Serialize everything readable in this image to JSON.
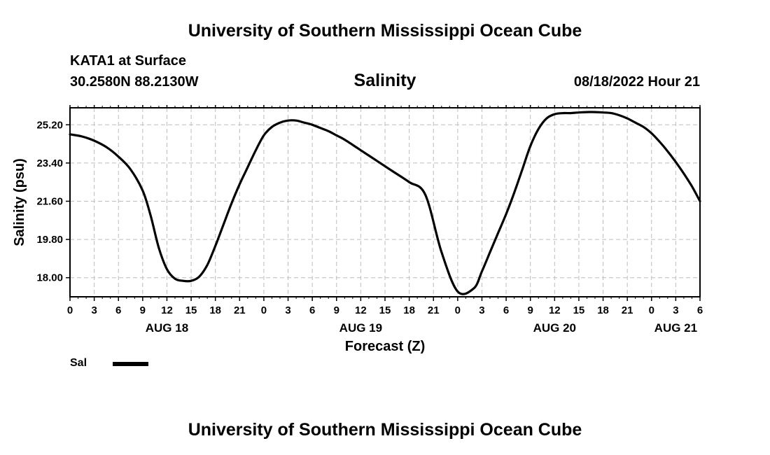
{
  "page": {
    "title_top": "University of Southern Mississippi Ocean Cube",
    "title_bottom": "University of Southern Mississippi Ocean Cube",
    "station": "KATA1 at Surface",
    "coords": "30.2580N  88.2130W",
    "variable": "Salinity",
    "datetime": "08/18/2022 Hour 21"
  },
  "chart_data": {
    "type": "line",
    "title": "Salinity",
    "xlabel": "Forecast (Z)",
    "ylabel": "Salinity (psu)",
    "x_unit": "hours since AUG 18 00Z",
    "xlim": [
      0,
      78
    ],
    "ylim": [
      17.1,
      26.0
    ],
    "grid": true,
    "x_tick_labels": [
      "0",
      "3",
      "6",
      "9",
      "12",
      "15",
      "18",
      "21",
      "0",
      "3",
      "6",
      "9",
      "12",
      "15",
      "18",
      "21",
      "0",
      "3",
      "6",
      "9",
      "12",
      "15",
      "18",
      "21",
      "0",
      "3",
      "6"
    ],
    "x_tick_step_hours": 3,
    "date_labels": [
      {
        "label": "AUG 18",
        "hour": 12
      },
      {
        "label": "AUG 19",
        "hour": 36
      },
      {
        "label": "AUG 20",
        "hour": 60
      },
      {
        "label": "AUG 21",
        "hour": 75
      }
    ],
    "y_ticks": [
      18.0,
      19.8,
      21.6,
      23.4,
      25.2
    ],
    "y_tick_labels": [
      "18.00",
      "19.80",
      "21.60",
      "23.40",
      "25.20"
    ],
    "legend": {
      "label": "Sal",
      "placement": "bottom-left"
    },
    "series": [
      {
        "name": "Sal",
        "x": [
          0,
          1.5,
          3,
          4.5,
          6,
          7.5,
          9,
          10,
          11,
          12,
          13,
          14,
          15,
          16,
          17,
          18,
          19,
          20,
          21,
          22,
          23,
          24,
          25,
          26,
          27,
          28,
          29,
          30,
          31,
          32,
          33,
          34,
          36,
          38,
          40,
          42,
          44,
          46,
          48,
          50,
          51,
          52,
          53,
          54,
          55,
          56,
          57,
          58,
          59,
          60,
          61,
          62,
          63,
          64,
          65,
          66,
          67,
          68,
          69,
          70,
          71,
          72,
          73,
          74,
          75,
          76,
          77,
          78
        ],
        "y": [
          24.75,
          24.65,
          24.45,
          24.15,
          23.7,
          23.1,
          22.1,
          20.9,
          19.4,
          18.4,
          17.95,
          17.85,
          17.85,
          18.05,
          18.6,
          19.5,
          20.5,
          21.5,
          22.4,
          23.2,
          24.0,
          24.7,
          25.1,
          25.3,
          25.4,
          25.4,
          25.3,
          25.2,
          25.05,
          24.9,
          24.7,
          24.5,
          24.0,
          23.5,
          23.0,
          22.5,
          21.9,
          19.2,
          17.35,
          17.5,
          18.3,
          19.2,
          20.1,
          21.0,
          22.0,
          23.1,
          24.2,
          25.0,
          25.5,
          25.7,
          25.75,
          25.75,
          25.78,
          25.8,
          25.8,
          25.78,
          25.75,
          25.65,
          25.5,
          25.3,
          25.1,
          24.8,
          24.4,
          23.95,
          23.45,
          22.9,
          22.3,
          21.6
        ]
      }
    ]
  }
}
